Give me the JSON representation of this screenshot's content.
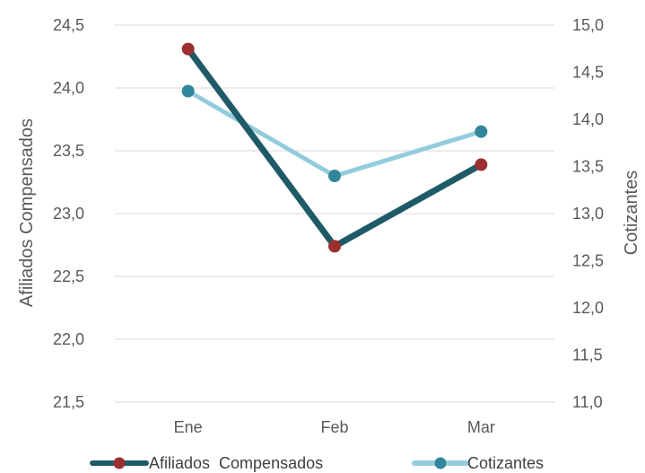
{
  "chart_data": {
    "type": "line",
    "categories": [
      "Ene",
      "Feb",
      "Mar"
    ],
    "series": [
      {
        "name": "Afiliados  Compensados",
        "axis": "left",
        "values": [
          24.31,
          22.74,
          23.39
        ],
        "line_color": "#1f5a68",
        "marker_color": "#9c2f2f"
      },
      {
        "name": "Cotizantes",
        "axis": "right",
        "values": [
          14.3,
          13.4,
          13.87
        ],
        "line_color": "#93cddd",
        "marker_color": "#31869b"
      }
    ],
    "y_left": {
      "label": "Afiliados Compensados",
      "min": 21.5,
      "max": 24.5,
      "ticks": [
        "21,5",
        "22,0",
        "22,5",
        "23,0",
        "23,5",
        "24,0",
        "24,5"
      ]
    },
    "y_right": {
      "label": "Cotizantes",
      "min": 11.0,
      "max": 15.0,
      "ticks": [
        "11,0",
        "11,5",
        "12,0",
        "12,5",
        "13,0",
        "13,5",
        "14,0",
        "14,5",
        "15,0"
      ]
    },
    "grid": true,
    "gridline_color": "#d9d9d9",
    "legend_position": "bottom"
  }
}
